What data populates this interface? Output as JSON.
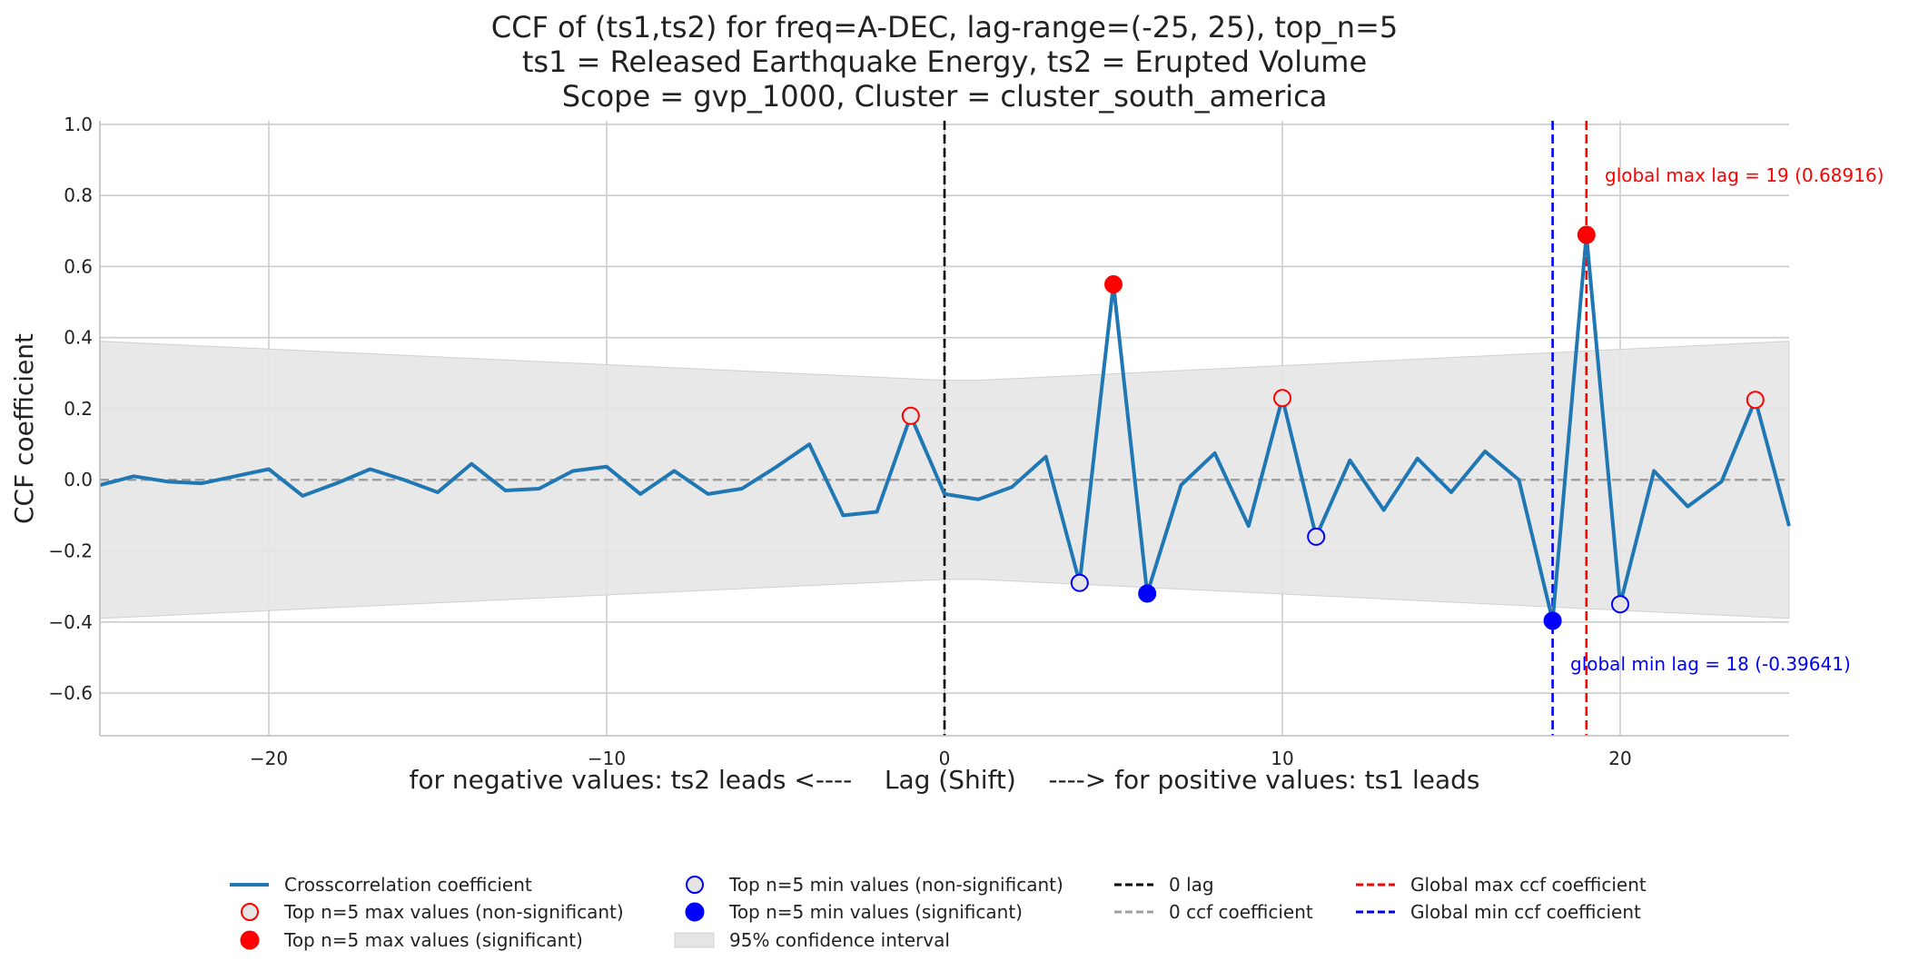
{
  "chart_data": {
    "type": "line",
    "title_lines": [
      "CCF of (ts1,ts2) for freq=A-DEC, lag-range=(-25, 25), top_n=5",
      "ts1 = Released Earthquake Energy, ts2 = Erupted Volume",
      "Scope = gvp_1000, Cluster = cluster_south_america"
    ],
    "xlabel": "for negative values: ts2 leads <----    Lag (Shift)    ----> for positive values: ts1 leads",
    "ylabel": "CCF coefficient",
    "xlim": [
      -25,
      25
    ],
    "ylim": [
      -0.72,
      1.01
    ],
    "x_ticks": [
      -20,
      -10,
      0,
      10,
      20
    ],
    "x_tick_labels": [
      "−20",
      "−10",
      "0",
      "10",
      "20"
    ],
    "y_ticks": [
      1.0,
      0.8,
      0.6,
      0.4,
      0.2,
      0.0,
      -0.2,
      -0.4,
      -0.6
    ],
    "y_tick_labels": [
      "1.0",
      "0.8",
      "0.6",
      "0.4",
      "0.2",
      "0.0",
      "−0.2",
      "−0.4",
      "−0.6"
    ],
    "grid": true,
    "series": [
      {
        "name": "Crosscorrelation coefficient",
        "color": "#1f77b4",
        "x": [
          -25,
          -24,
          -23,
          -22,
          -21,
          -20,
          -19,
          -18,
          -17,
          -16,
          -15,
          -14,
          -13,
          -12,
          -11,
          -10,
          -9,
          -8,
          -7,
          -6,
          -5,
          -4,
          -3,
          -2,
          -1,
          0,
          1,
          2,
          3,
          4,
          5,
          6,
          7,
          8,
          9,
          10,
          11,
          12,
          13,
          14,
          15,
          16,
          17,
          18,
          19,
          20,
          21,
          22,
          23,
          24,
          25
        ],
        "y": [
          -0.015,
          0.01,
          -0.005,
          -0.01,
          0.01,
          0.03,
          -0.045,
          -0.01,
          0.03,
          0.0,
          -0.035,
          0.045,
          -0.03,
          -0.025,
          0.025,
          0.037,
          -0.04,
          0.025,
          -0.04,
          -0.025,
          0.035,
          0.1,
          -0.1,
          -0.09,
          0.18,
          -0.04,
          -0.055,
          -0.02,
          0.065,
          -0.29,
          0.55,
          -0.32,
          -0.015,
          0.075,
          -0.13,
          0.23,
          -0.16,
          0.055,
          -0.085,
          0.06,
          -0.035,
          0.08,
          0.0,
          -0.39641,
          0.68916,
          -0.35,
          0.025,
          -0.075,
          -0.005,
          0.225,
          -0.13
        ]
      }
    ],
    "confidence_interval": {
      "name": "95% confidence interval",
      "color": "#e5e5e5",
      "x": [
        -25,
        0,
        1,
        25
      ],
      "upper": [
        0.39,
        0.28,
        0.28,
        0.39
      ],
      "lower": [
        -0.39,
        -0.28,
        -0.28,
        -0.39
      ]
    },
    "top_max_nonsignificant": {
      "x": [
        -1,
        10,
        24
      ],
      "y": [
        0.18,
        0.23,
        0.225
      ]
    },
    "top_max_significant": {
      "x": [
        5,
        19
      ],
      "y": [
        0.55,
        0.68916
      ]
    },
    "top_min_nonsignificant": {
      "x": [
        4,
        11,
        20
      ],
      "y": [
        -0.29,
        -0.16,
        -0.35
      ]
    },
    "top_min_significant": {
      "x": [
        6,
        18
      ],
      "y": [
        -0.32,
        -0.39641
      ]
    },
    "zero_lag_line": {
      "x": 0,
      "color": "#000000"
    },
    "zero_ccf_line": {
      "y": 0,
      "color": "#a0a0a0"
    },
    "global_max": {
      "x": 19,
      "value": 0.68916,
      "color": "#ff0000",
      "label": "global max lag = 19 (0.68916)"
    },
    "global_min": {
      "x": 18,
      "value": -0.39641,
      "color": "#0000ff",
      "label": "global min lag = 18 (-0.39641)"
    },
    "legend": {
      "placement": "bottom-center",
      "entries": [
        {
          "label": "Crosscorrelation coefficient",
          "kind": "line",
          "color": "#1f77b4"
        },
        {
          "label": "Top n=5 max values (non-significant)",
          "kind": "open-circle",
          "color": "#ff0000"
        },
        {
          "label": "Top n=5 max values (significant)",
          "kind": "filled-circle",
          "color": "#ff0000"
        },
        {
          "label": "Top n=5 min values (non-significant)",
          "kind": "open-circle",
          "color": "#0000ff"
        },
        {
          "label": "Top n=5 min values (significant)",
          "kind": "filled-circle",
          "color": "#0000ff"
        },
        {
          "label": "95% confidence interval",
          "kind": "patch",
          "color": "#e5e5e5"
        },
        {
          "label": "0 lag",
          "kind": "dashed",
          "color": "#000000"
        },
        {
          "label": "0 ccf coefficient",
          "kind": "dashed",
          "color": "#a0a0a0"
        },
        {
          "label": "Global max ccf coefficient",
          "kind": "dashed",
          "color": "#ff0000"
        },
        {
          "label": "Global min ccf coefficient",
          "kind": "dashed",
          "color": "#0000ff"
        }
      ]
    }
  }
}
